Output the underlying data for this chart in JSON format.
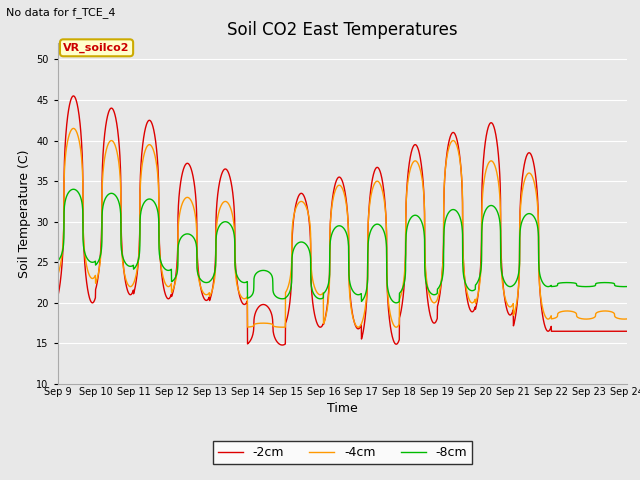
{
  "title": "Soil CO2 East Temperatures",
  "xlabel": "Time",
  "ylabel": "Soil Temperature (C)",
  "annotation_text": "No data for f_TCE_4",
  "box_label": "VR_soilco2",
  "ylim": [
    10,
    52
  ],
  "yticks": [
    10,
    15,
    20,
    25,
    30,
    35,
    40,
    45,
    50
  ],
  "xtick_labels": [
    "Sep 9",
    "Sep 10",
    "Sep 11",
    "Sep 12",
    "Sep 13",
    "Sep 14",
    "Sep 15",
    "Sep 16",
    "Sep 17",
    "Sep 18",
    "Sep 19",
    "Sep 20",
    "Sep 21",
    "Sep 22",
    "Sep 23",
    "Sep 24"
  ],
  "color_2cm": "#dd0000",
  "color_4cm": "#ff9900",
  "color_8cm": "#00bb00",
  "legend_labels": [
    "-2cm",
    "-4cm",
    "-8cm"
  ],
  "background_color": "#e8e8e8",
  "fig_background": "#e8e8e8",
  "grid_color": "#ffffff",
  "title_fontsize": 12,
  "axis_fontsize": 9,
  "tick_fontsize": 7,
  "legend_fontsize": 9,
  "daily_peaks_2cm": [
    45.5,
    44.0,
    42.5,
    37.2,
    36.5,
    19.8,
    33.5,
    35.5,
    36.7,
    39.5,
    41.0,
    42.2,
    38.5,
    16.5
  ],
  "daily_mins_2cm": [
    20.0,
    21.0,
    20.5,
    20.3,
    19.8,
    14.8,
    17.0,
    16.8,
    14.9,
    17.5,
    18.9,
    18.5,
    16.5,
    16.5
  ],
  "daily_peaks_4cm": [
    41.5,
    40.0,
    39.5,
    33.0,
    32.5,
    17.5,
    32.5,
    34.5,
    35.0,
    37.5,
    40.0,
    37.5,
    36.0,
    19.0
  ],
  "daily_mins_4cm": [
    23.0,
    22.0,
    22.0,
    21.0,
    20.5,
    17.0,
    21.0,
    17.0,
    17.0,
    20.0,
    20.0,
    19.5,
    18.0,
    18.0
  ],
  "daily_peaks_8cm": [
    34.0,
    33.5,
    32.8,
    28.5,
    30.0,
    24.0,
    27.5,
    29.5,
    29.7,
    30.8,
    31.5,
    32.0,
    31.0,
    22.5
  ],
  "daily_mins_8cm": [
    25.0,
    24.5,
    24.0,
    22.5,
    22.5,
    20.5,
    20.5,
    21.0,
    20.0,
    21.0,
    21.5,
    22.0,
    22.0,
    22.0
  ]
}
